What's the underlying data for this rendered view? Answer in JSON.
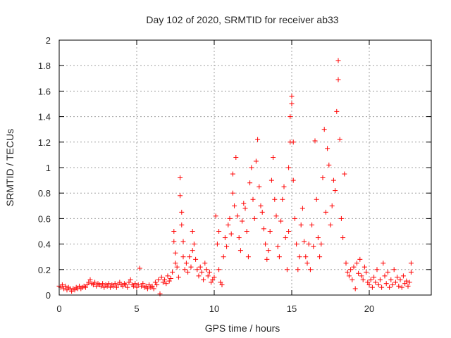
{
  "chart_data": {
    "type": "scatter",
    "title": "Day 102 of 2020, SRMTID for receiver ab33",
    "xlabel": "GPS time / hours",
    "ylabel": "SRMTID / TECUs",
    "xlim": [
      0,
      24
    ],
    "ylim": [
      0,
      2
    ],
    "xticks": [
      0,
      5,
      10,
      15,
      20
    ],
    "yticks": [
      0,
      0.2,
      0.4,
      0.6,
      0.8,
      1,
      1.2,
      1.4,
      1.6,
      1.8,
      2
    ],
    "ytick_labels": [
      "0",
      "0.2",
      "0.4",
      "0.6",
      "0.8",
      "1",
      "1.2",
      "1.4",
      "1.6",
      "1.8",
      "2"
    ],
    "grid": true,
    "marker": "+",
    "color": "#ff0000",
    "series": [
      {
        "name": "SRMTID",
        "points": [
          [
            0.0,
            0.07
          ],
          [
            0.1,
            0.06
          ],
          [
            0.2,
            0.08
          ],
          [
            0.3,
            0.05
          ],
          [
            0.4,
            0.07
          ],
          [
            0.5,
            0.04
          ],
          [
            0.6,
            0.06
          ],
          [
            0.7,
            0.05
          ],
          [
            0.8,
            0.03
          ],
          [
            0.9,
            0.05
          ],
          [
            1.0,
            0.04
          ],
          [
            1.1,
            0.06
          ],
          [
            1.2,
            0.05
          ],
          [
            1.3,
            0.07
          ],
          [
            1.4,
            0.05
          ],
          [
            1.5,
            0.06
          ],
          [
            1.6,
            0.07
          ],
          [
            1.7,
            0.06
          ],
          [
            1.8,
            0.08
          ],
          [
            1.9,
            0.1
          ],
          [
            2.0,
            0.12
          ],
          [
            2.1,
            0.09
          ],
          [
            2.2,
            0.08
          ],
          [
            2.3,
            0.1
          ],
          [
            2.4,
            0.07
          ],
          [
            2.5,
            0.09
          ],
          [
            2.6,
            0.08
          ],
          [
            2.7,
            0.07
          ],
          [
            2.8,
            0.09
          ],
          [
            2.9,
            0.06
          ],
          [
            3.0,
            0.08
          ],
          [
            3.1,
            0.07
          ],
          [
            3.2,
            0.09
          ],
          [
            3.3,
            0.06
          ],
          [
            3.4,
            0.08
          ],
          [
            3.5,
            0.07
          ],
          [
            3.6,
            0.09
          ],
          [
            3.7,
            0.06
          ],
          [
            3.8,
            0.08
          ],
          [
            3.9,
            0.1
          ],
          [
            4.0,
            0.08
          ],
          [
            4.1,
            0.07
          ],
          [
            4.2,
            0.09
          ],
          [
            4.3,
            0.08
          ],
          [
            4.4,
            0.06
          ],
          [
            4.5,
            0.1
          ],
          [
            4.6,
            0.12
          ],
          [
            4.7,
            0.08
          ],
          [
            4.8,
            0.07
          ],
          [
            4.9,
            0.09
          ],
          [
            5.0,
            0.06
          ],
          [
            5.1,
            0.08
          ],
          [
            5.2,
            0.21
          ],
          [
            5.3,
            0.07
          ],
          [
            5.4,
            0.09
          ],
          [
            5.5,
            0.06
          ],
          [
            5.6,
            0.07
          ],
          [
            5.7,
            0.05
          ],
          [
            5.8,
            0.08
          ],
          [
            5.9,
            0.06
          ],
          [
            6.0,
            0.07
          ],
          [
            6.1,
            0.05
          ],
          [
            6.2,
            0.1
          ],
          [
            6.3,
            0.08
          ],
          [
            6.4,
            0.12
          ],
          [
            6.5,
            0.01
          ],
          [
            6.6,
            0.14
          ],
          [
            6.7,
            0.1
          ],
          [
            6.8,
            0.12
          ],
          [
            6.9,
            0.09
          ],
          [
            7.0,
            0.15
          ],
          [
            7.1,
            0.11
          ],
          [
            7.2,
            0.13
          ],
          [
            7.3,
            0.18
          ],
          [
            7.4,
            0.5
          ],
          [
            7.4,
            0.42
          ],
          [
            7.5,
            0.33
          ],
          [
            7.5,
            0.25
          ],
          [
            7.6,
            0.22
          ],
          [
            7.7,
            0.14
          ],
          [
            7.8,
            0.92
          ],
          [
            7.8,
            0.78
          ],
          [
            7.9,
            0.65
          ],
          [
            7.9,
            0.55
          ],
          [
            8.0,
            0.42
          ],
          [
            8.0,
            0.3
          ],
          [
            8.1,
            0.2
          ],
          [
            8.2,
            0.25
          ],
          [
            8.3,
            0.18
          ],
          [
            8.4,
            0.3
          ],
          [
            8.5,
            0.22
          ],
          [
            8.6,
            0.35
          ],
          [
            8.6,
            0.5
          ],
          [
            8.7,
            0.4
          ],
          [
            8.8,
            0.28
          ],
          [
            8.9,
            0.2
          ],
          [
            9.0,
            0.15
          ],
          [
            9.1,
            0.22
          ],
          [
            9.2,
            0.18
          ],
          [
            9.3,
            0.12
          ],
          [
            9.4,
            0.25
          ],
          [
            9.5,
            0.2
          ],
          [
            9.6,
            0.15
          ],
          [
            9.7,
            0.18
          ],
          [
            9.8,
            0.1
          ],
          [
            9.9,
            0.12
          ],
          [
            10.0,
            0.14
          ],
          [
            10.1,
            0.62
          ],
          [
            10.2,
            0.4
          ],
          [
            10.3,
            0.5
          ],
          [
            10.3,
            0.2
          ],
          [
            10.4,
            0.1
          ],
          [
            10.5,
            0.08
          ],
          [
            10.6,
            0.3
          ],
          [
            10.7,
            0.45
          ],
          [
            10.8,
            0.38
          ],
          [
            10.9,
            0.55
          ],
          [
            11.0,
            0.6
          ],
          [
            11.1,
            0.48
          ],
          [
            11.2,
            0.8
          ],
          [
            11.2,
            0.95
          ],
          [
            11.3,
            0.7
          ],
          [
            11.4,
            1.08
          ],
          [
            11.5,
            0.62
          ],
          [
            11.6,
            0.45
          ],
          [
            11.7,
            0.35
          ],
          [
            11.8,
            0.58
          ],
          [
            11.9,
            0.72
          ],
          [
            12.0,
            0.68
          ],
          [
            12.1,
            0.5
          ],
          [
            12.2,
            0.3
          ],
          [
            12.3,
            0.88
          ],
          [
            12.4,
            1.0
          ],
          [
            12.5,
            0.75
          ],
          [
            12.6,
            0.6
          ],
          [
            12.7,
            1.05
          ],
          [
            12.8,
            1.22
          ],
          [
            12.9,
            0.85
          ],
          [
            13.0,
            0.7
          ],
          [
            13.1,
            0.65
          ],
          [
            13.2,
            0.52
          ],
          [
            13.3,
            0.4
          ],
          [
            13.4,
            0.28
          ],
          [
            13.5,
            0.35
          ],
          [
            13.6,
            0.5
          ],
          [
            13.7,
            0.9
          ],
          [
            13.8,
            1.08
          ],
          [
            13.9,
            0.75
          ],
          [
            14.0,
            0.62
          ],
          [
            14.1,
            0.38
          ],
          [
            14.2,
            0.3
          ],
          [
            14.3,
            0.58
          ],
          [
            14.4,
            0.75
          ],
          [
            14.5,
            0.85
          ],
          [
            14.6,
            0.45
          ],
          [
            14.7,
            0.2
          ],
          [
            14.8,
            0.5
          ],
          [
            14.8,
            1.0
          ],
          [
            14.9,
            1.2
          ],
          [
            14.9,
            1.4
          ],
          [
            15.0,
            1.56
          ],
          [
            15.0,
            1.5
          ],
          [
            15.1,
            1.2
          ],
          [
            15.1,
            0.9
          ],
          [
            15.2,
            0.6
          ],
          [
            15.3,
            0.4
          ],
          [
            15.4,
            0.2
          ],
          [
            15.5,
            0.3
          ],
          [
            15.6,
            0.55
          ],
          [
            15.7,
            0.68
          ],
          [
            15.8,
            0.42
          ],
          [
            15.9,
            0.3
          ],
          [
            16.0,
            0.25
          ],
          [
            16.1,
            0.4
          ],
          [
            16.2,
            0.2
          ],
          [
            16.3,
            0.55
          ],
          [
            16.4,
            0.38
          ],
          [
            16.5,
            1.21
          ],
          [
            16.6,
            0.75
          ],
          [
            16.7,
            0.45
          ],
          [
            16.8,
            0.3
          ],
          [
            16.9,
            0.4
          ],
          [
            17.0,
            0.92
          ],
          [
            17.1,
            1.3
          ],
          [
            17.2,
            0.65
          ],
          [
            17.3,
            1.15
          ],
          [
            17.4,
            1.02
          ],
          [
            17.5,
            0.55
          ],
          [
            17.6,
            0.7
          ],
          [
            17.7,
            0.9
          ],
          [
            17.8,
            0.82
          ],
          [
            17.9,
            1.44
          ],
          [
            18.0,
            1.84
          ],
          [
            18.0,
            1.69
          ],
          [
            18.1,
            1.22
          ],
          [
            18.2,
            0.6
          ],
          [
            18.3,
            0.45
          ],
          [
            18.4,
            0.95
          ],
          [
            18.5,
            0.25
          ],
          [
            18.6,
            0.18
          ],
          [
            18.7,
            0.15
          ],
          [
            18.8,
            0.2
          ],
          [
            18.9,
            0.12
          ],
          [
            19.0,
            0.22
          ],
          [
            19.1,
            0.05
          ],
          [
            19.2,
            0.25
          ],
          [
            19.3,
            0.17
          ],
          [
            19.4,
            0.28
          ],
          [
            19.5,
            0.15
          ],
          [
            19.6,
            0.12
          ],
          [
            19.7,
            0.22
          ],
          [
            19.8,
            0.18
          ],
          [
            19.9,
            0.1
          ],
          [
            20.0,
            0.08
          ],
          [
            20.1,
            0.12
          ],
          [
            20.2,
            0.06
          ],
          [
            20.3,
            0.14
          ],
          [
            20.4,
            0.1
          ],
          [
            20.5,
            0.2
          ],
          [
            20.6,
            0.08
          ],
          [
            20.7,
            0.12
          ],
          [
            20.8,
            0.06
          ],
          [
            20.9,
            0.25
          ],
          [
            21.0,
            0.15
          ],
          [
            21.1,
            0.09
          ],
          [
            21.2,
            0.18
          ],
          [
            21.3,
            0.06
          ],
          [
            21.4,
            0.12
          ],
          [
            21.5,
            0.08
          ],
          [
            21.6,
            0.2
          ],
          [
            21.7,
            0.1
          ],
          [
            21.8,
            0.14
          ],
          [
            21.9,
            0.07
          ],
          [
            22.0,
            0.12
          ],
          [
            22.1,
            0.06
          ],
          [
            22.2,
            0.15
          ],
          [
            22.3,
            0.09
          ],
          [
            22.4,
            0.11
          ],
          [
            22.5,
            0.07
          ],
          [
            22.6,
            0.1
          ],
          [
            22.7,
            0.25
          ],
          [
            22.7,
            0.18
          ]
        ]
      }
    ]
  }
}
